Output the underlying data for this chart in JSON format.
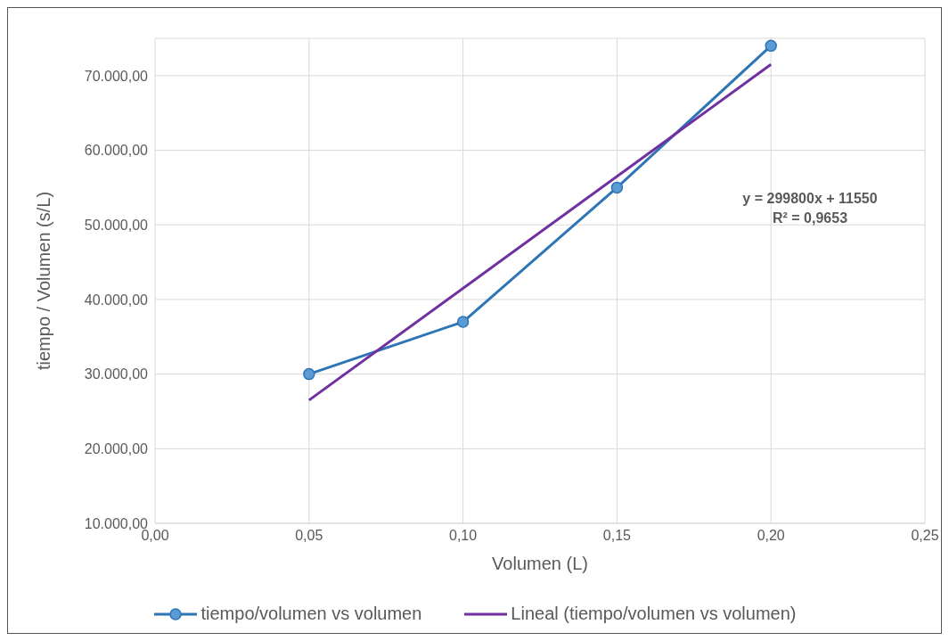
{
  "chart_data": {
    "type": "line",
    "xlabel": "Volumen (L)",
    "ylabel": "tiempo / Volumen (s/L)",
    "xlim": [
      0,
      0.25
    ],
    "xticks": [
      {
        "value": 0,
        "label": "0,00"
      },
      {
        "value": 0.05,
        "label": "0,05"
      },
      {
        "value": 0.1,
        "label": "0,10"
      },
      {
        "value": 0.15,
        "label": "0,15"
      },
      {
        "value": 0.2,
        "label": "0,20"
      },
      {
        "value": 0.25,
        "label": "0,25"
      }
    ],
    "ylim": [
      10000,
      75000
    ],
    "yticks": [
      {
        "value": 10000,
        "label": "10.000,00"
      },
      {
        "value": 20000,
        "label": "20.000,00"
      },
      {
        "value": 30000,
        "label": "30.000,00"
      },
      {
        "value": 40000,
        "label": "40.000,00"
      },
      {
        "value": 50000,
        "label": "50.000,00"
      },
      {
        "value": 60000,
        "label": "60.000,00"
      },
      {
        "value": 70000,
        "label": "70.000,00"
      }
    ],
    "grid": true,
    "legend": "bottom",
    "line_style": "solid",
    "series": [
      {
        "name": "tiempo/volumen vs volumen",
        "color": "#2e75b6",
        "x": [
          0.05,
          0.1,
          0.15,
          0.2
        ],
        "values": [
          30000,
          37000,
          55000,
          74000
        ],
        "marker": "circle"
      },
      {
        "name": "Lineal (tiempo/volumen vs volumen)",
        "color": "#7030a0",
        "x": [
          0.05,
          0.2
        ],
        "values": [
          26500,
          71500
        ],
        "marker": "none"
      }
    ],
    "annotations": [
      "y = 299800x + 11550",
      "R² = 0,9653"
    ]
  }
}
